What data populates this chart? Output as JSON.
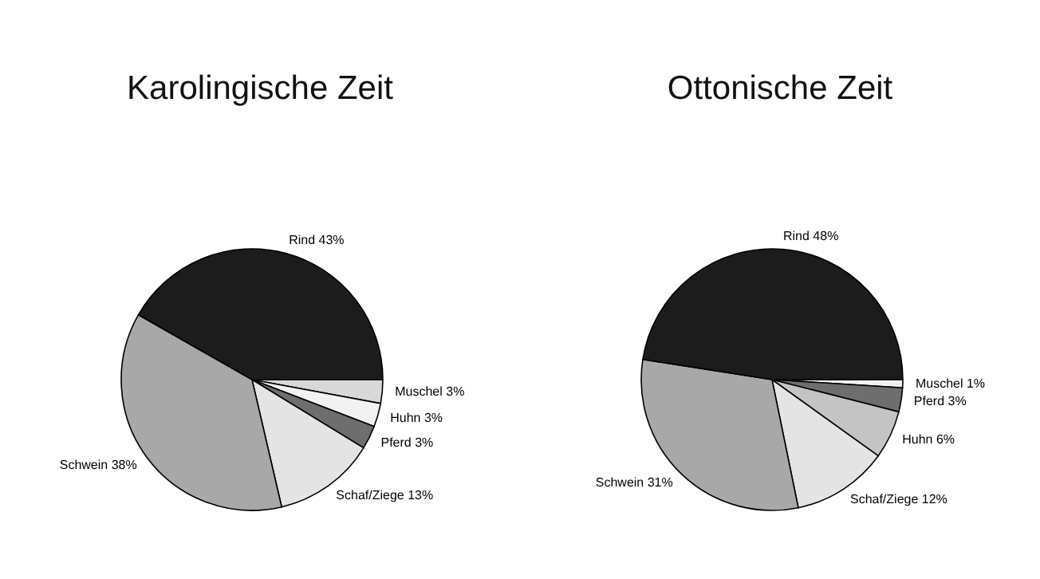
{
  "chart_data": [
    {
      "type": "pie",
      "title": "Karolingische Zeit",
      "categories": [
        "Muschel",
        "Huhn",
        "Pferd",
        "Schaf/Ziege",
        "Schwein",
        "Rind"
      ],
      "values": [
        3,
        3,
        3,
        13,
        38,
        43
      ],
      "value_labels": [
        "3%",
        "3%",
        "3%",
        "13%",
        "38%",
        "43%"
      ],
      "colors": [
        "#d8d8d8",
        "#f2f2f2",
        "#6e6e6e",
        "#e4e4e4",
        "#a8a8a8",
        "#1c1c1c"
      ]
    },
    {
      "type": "pie",
      "title": "Ottonische Zeit",
      "categories": [
        "Muschel",
        "Pferd",
        "Huhn",
        "Schaf/Ziege",
        "Schwein",
        "Rind"
      ],
      "values": [
        1,
        3,
        6,
        12,
        31,
        48
      ],
      "value_labels": [
        "1%",
        "3%",
        "6%",
        "12%",
        "31%",
        "48%"
      ],
      "colors": [
        "#f2f2f2",
        "#6e6e6e",
        "#c4c4c4",
        "#e4e4e4",
        "#a8a8a8",
        "#1c1c1c"
      ]
    }
  ]
}
